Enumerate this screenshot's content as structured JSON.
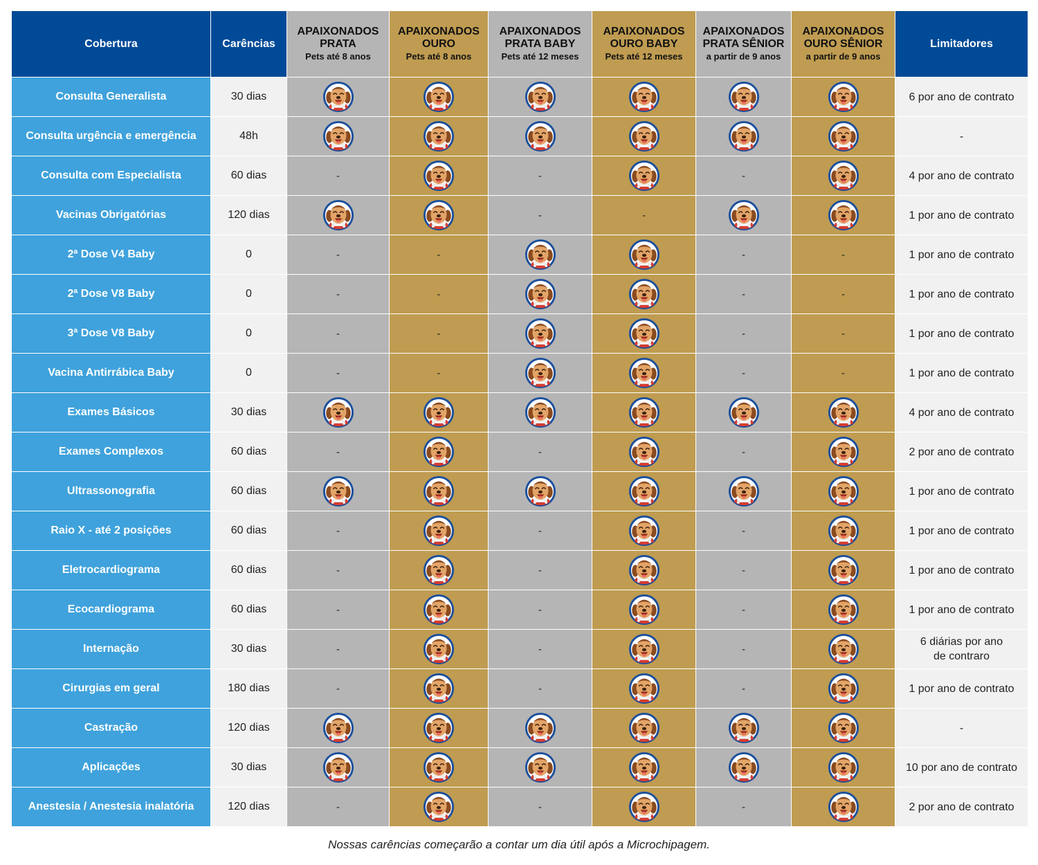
{
  "colors": {
    "header_blue": "#004a97",
    "coverage_blue": "#3fa2dc",
    "plan_gray": "#b5b5b5",
    "plan_gold": "#bf9c51",
    "light_cell": "#f1f1f1"
  },
  "icon": "dog-mascot-icon",
  "columns": {
    "coverage": "Cobertura",
    "waiting": "Carências",
    "limits": "Limitadores",
    "plans": [
      {
        "name": "APAIXONADOS PRATA",
        "sub": "Pets até 8 anos",
        "tone": "gray"
      },
      {
        "name": "APAIXONADOS OURO",
        "sub": "Pets até 8 anos",
        "tone": "gold"
      },
      {
        "name": "APAIXONADOS PRATA BABY",
        "sub": "Pets até 12 meses",
        "tone": "gray"
      },
      {
        "name": "APAIXONADOS OURO BABY",
        "sub": "Pets até 12 meses",
        "tone": "gold"
      },
      {
        "name": "APAIXONADOS PRATA SÊNIOR",
        "sub": "a partir de 9 anos",
        "tone": "gray"
      },
      {
        "name": "APAIXONADOS OURO SÊNIOR",
        "sub": "a partir de 9 anos",
        "tone": "gold"
      }
    ]
  },
  "rows": [
    {
      "coverage": "Consulta Generalista",
      "waiting": "30 dias",
      "plans": [
        true,
        true,
        true,
        true,
        true,
        true
      ],
      "limit": "6 por ano de contrato"
    },
    {
      "coverage": "Consulta urgência e emergência",
      "waiting": "48h",
      "plans": [
        true,
        true,
        true,
        true,
        true,
        true
      ],
      "limit": "-"
    },
    {
      "coverage": "Consulta com Especialista",
      "waiting": "60 dias",
      "plans": [
        false,
        true,
        false,
        true,
        false,
        true
      ],
      "limit": "4 por ano de contrato"
    },
    {
      "coverage": "Vacinas Obrigatórias",
      "waiting": "120 dias",
      "plans": [
        true,
        true,
        false,
        false,
        true,
        true
      ],
      "limit": "1 por ano de contrato"
    },
    {
      "coverage": "2ª Dose V4 Baby",
      "waiting": "0",
      "plans": [
        false,
        false,
        true,
        true,
        false,
        false
      ],
      "limit": "1 por ano de contrato"
    },
    {
      "coverage": "2ª Dose V8 Baby",
      "waiting": "0",
      "plans": [
        false,
        false,
        true,
        true,
        false,
        false
      ],
      "limit": "1 por ano de contrato"
    },
    {
      "coverage": "3ª Dose V8 Baby",
      "waiting": "0",
      "plans": [
        false,
        false,
        true,
        true,
        false,
        false
      ],
      "limit": "1 por ano de contrato"
    },
    {
      "coverage": "Vacina Antirrábica Baby",
      "waiting": "0",
      "plans": [
        false,
        false,
        true,
        true,
        false,
        false
      ],
      "limit": "1 por ano de contrato"
    },
    {
      "coverage": "Exames Básicos",
      "waiting": "30 dias",
      "plans": [
        true,
        true,
        true,
        true,
        true,
        true
      ],
      "limit": "4 por ano de contrato"
    },
    {
      "coverage": "Exames Complexos",
      "waiting": "60 dias",
      "plans": [
        false,
        true,
        false,
        true,
        false,
        true
      ],
      "limit": "2 por ano de contrato"
    },
    {
      "coverage": "Ultrassonografia",
      "waiting": "60 dias",
      "plans": [
        true,
        true,
        true,
        true,
        true,
        true
      ],
      "limit": "1 por ano de contrato"
    },
    {
      "coverage": "Raio X - até 2 posições",
      "waiting": "60 dias",
      "plans": [
        false,
        true,
        false,
        true,
        false,
        true
      ],
      "limit": "1 por ano de contrato"
    },
    {
      "coverage": "Eletrocardiograma",
      "waiting": "60 dias",
      "plans": [
        false,
        true,
        false,
        true,
        false,
        true
      ],
      "limit": "1 por ano de contrato"
    },
    {
      "coverage": "Ecocardiograma",
      "waiting": "60 dias",
      "plans": [
        false,
        true,
        false,
        true,
        false,
        true
      ],
      "limit": "1 por ano de contrato"
    },
    {
      "coverage": "Internação",
      "waiting": "30 dias",
      "plans": [
        false,
        true,
        false,
        true,
        false,
        true
      ],
      "limit": "6 diárias por ano\nde contraro"
    },
    {
      "coverage": "Cirurgias em geral",
      "waiting": "180 dias",
      "plans": [
        false,
        true,
        false,
        true,
        false,
        true
      ],
      "limit": "1 por ano de contrato"
    },
    {
      "coverage": "Castração",
      "waiting": "120 dias",
      "plans": [
        true,
        true,
        true,
        true,
        true,
        true
      ],
      "limit": "-"
    },
    {
      "coverage": "Aplicações",
      "waiting": "30 dias",
      "plans": [
        true,
        true,
        true,
        true,
        true,
        true
      ],
      "limit": "10 por ano de contrato"
    },
    {
      "coverage": "Anestesia / Anestesia inalatória",
      "waiting": "120 dias",
      "plans": [
        false,
        true,
        false,
        true,
        false,
        true
      ],
      "limit": "2 por ano de contrato"
    }
  ],
  "not_included": "-",
  "footnote": "Nossas carências começarão a contar um dia útil após a Microchipagem."
}
